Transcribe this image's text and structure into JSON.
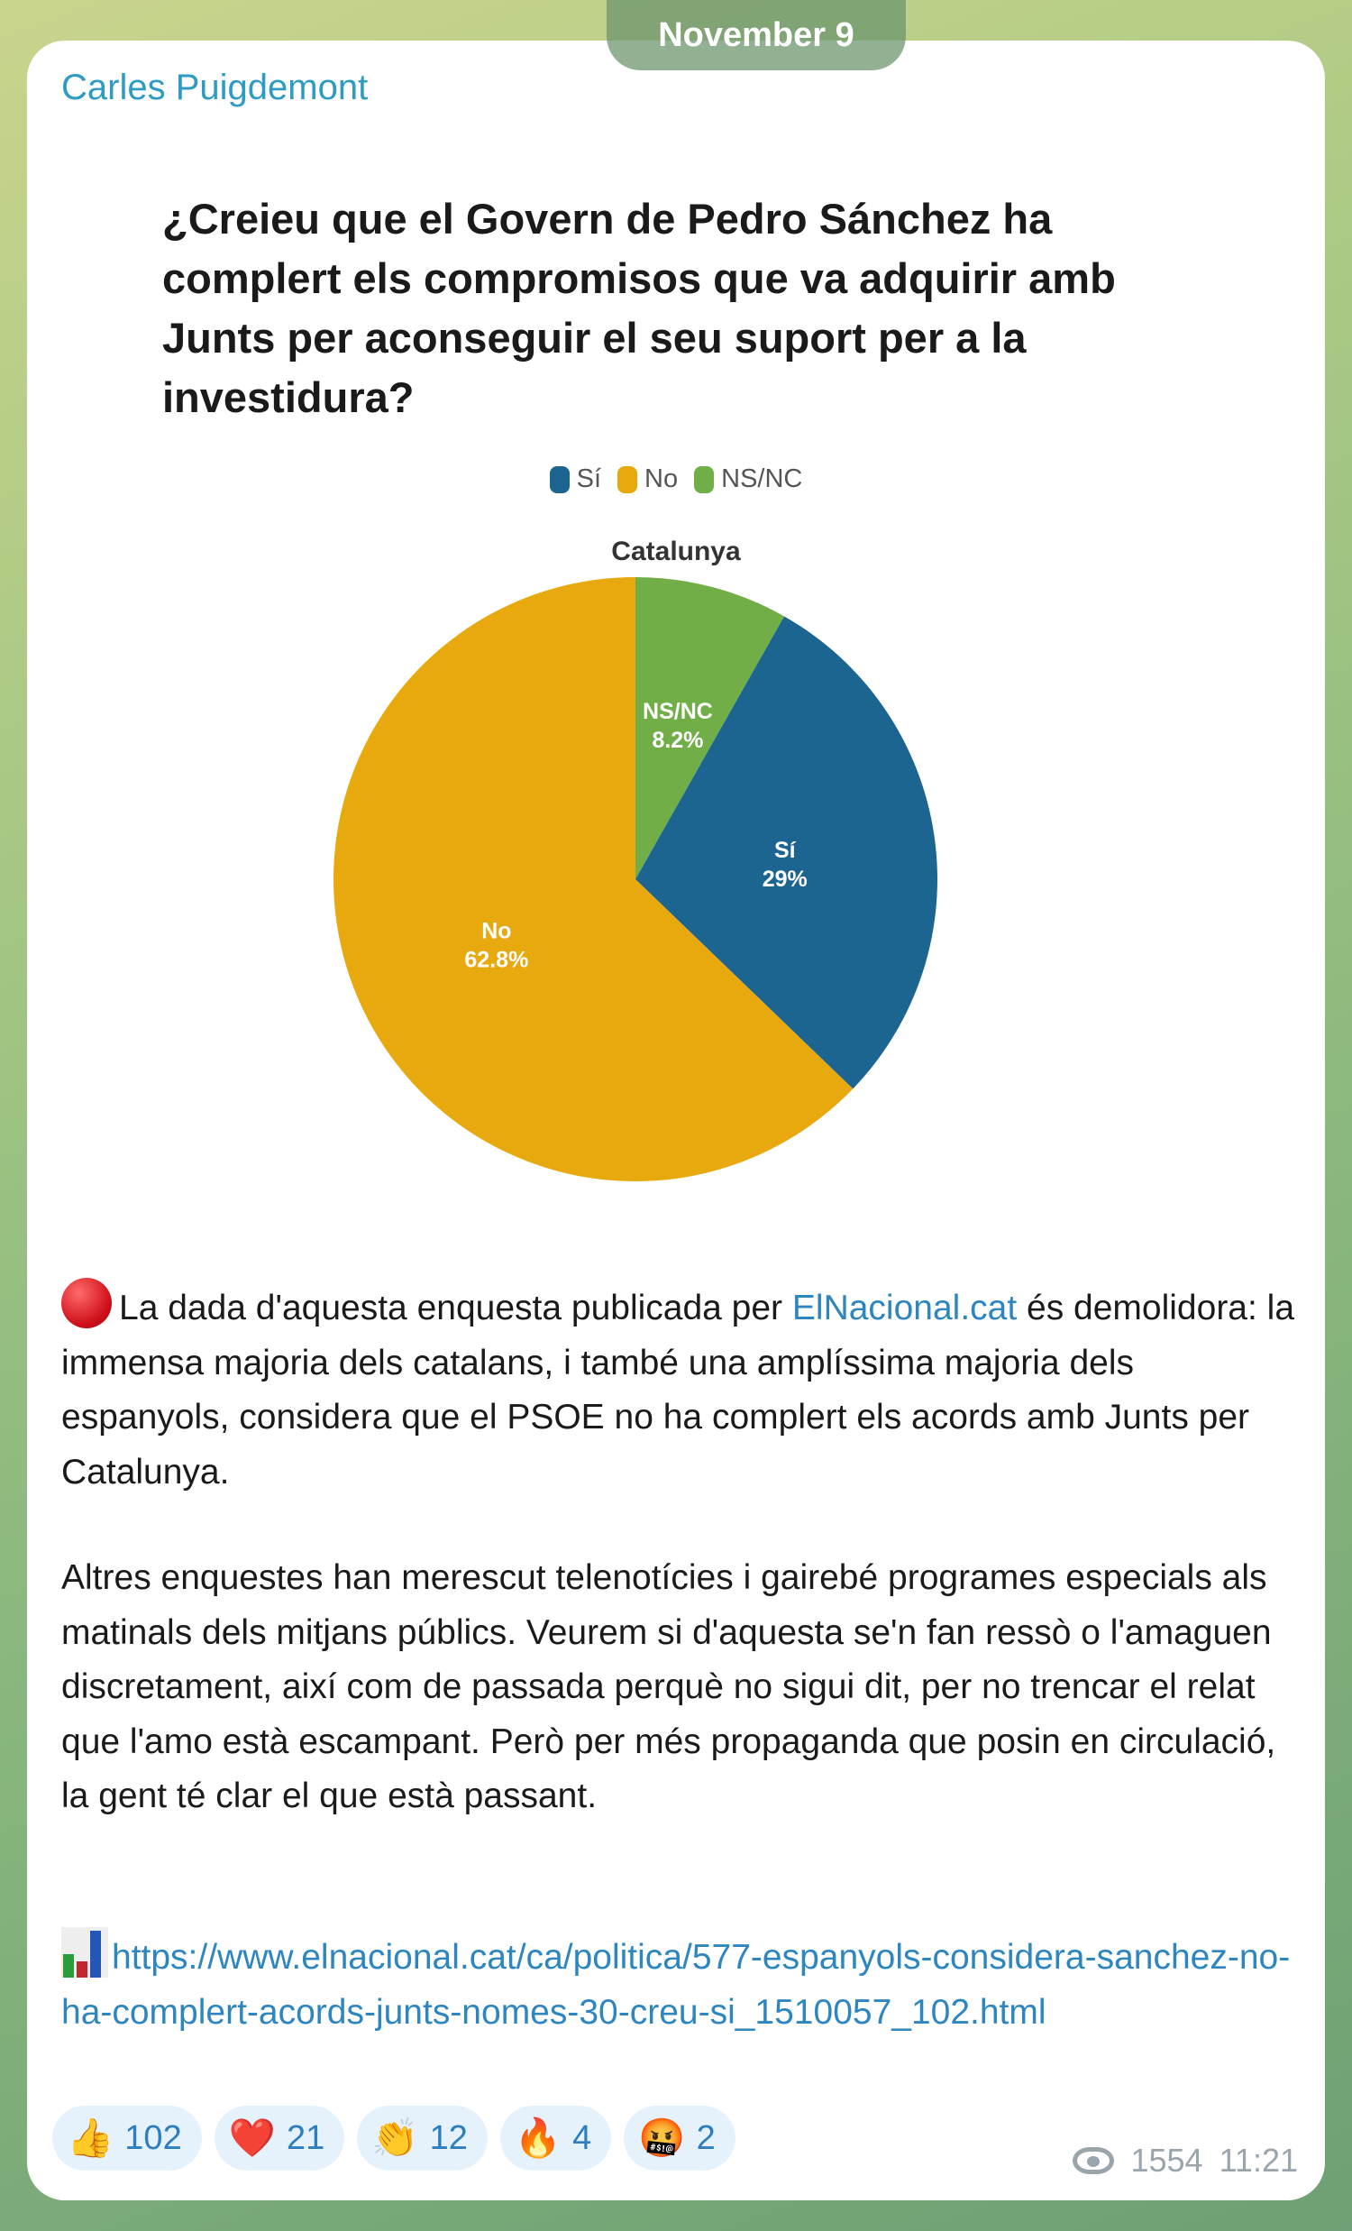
{
  "date_pill": "November 9",
  "message": {
    "sender": "Carles Puigdemont",
    "paragraph1": {
      "emoji": "red-circle",
      "before_link": "La dada d'aquesta enquesta publicada per ",
      "link_text": "ElNacional.cat",
      "after_link": " és demolidora: la immensa majoria dels catalans, i també una amplíssima majoria dels espanyols, considera que el PSOE no ha complert els acords amb Junts per Catalunya."
    },
    "paragraph2": "Altres enquestes han merescut telenotícies i gairebé programes especials als matinals dels mitjans públics. Veurem si d'aquesta se'n fan ressò o l'amaguen discretament, així com de passada perquè no sigui dit, per no trencar el relat que l'amo està escampant. Però per més propaganda que posin en circulació, la gent té clar el que està passant.",
    "link": {
      "emoji": "bar-chart",
      "url": "https://www.elnacional.cat/ca/politica/577-espanyols-considera-sanchez-no-ha-complert-acords-junts-nomes-30-creu-si_1510057_102.html"
    },
    "reactions": [
      {
        "emoji": "👍",
        "name": "thumbs-up",
        "count": "102"
      },
      {
        "emoji": "❤️",
        "name": "heart",
        "count": "21"
      },
      {
        "emoji": "👏",
        "name": "clapping",
        "count": "12"
      },
      {
        "emoji": "🔥",
        "name": "fire",
        "count": "4"
      },
      {
        "emoji": "🤬",
        "name": "angry-face",
        "count": "2"
      }
    ],
    "views": "1554",
    "time": "11:21"
  },
  "chart_data": {
    "type": "pie",
    "title": "¿Creieu que el Govern de Pedro Sánchez ha complert els compromisos que va adquirir amb Junts per aconseguir el seu suport per a la investidura?",
    "subtitle": "Catalunya",
    "legend_position": "top",
    "legend": [
      "Sí",
      "No",
      "NS/NC"
    ],
    "slices": [
      {
        "label": "NS/NC",
        "value": 8.2,
        "value_label": "8.2%",
        "color": "#71ae48"
      },
      {
        "label": "Sí",
        "value": 29,
        "value_label": "29%",
        "color": "#1d6591"
      },
      {
        "label": "No",
        "value": 62.8,
        "value_label": "62.8%",
        "color": "#e8a90e"
      }
    ]
  }
}
